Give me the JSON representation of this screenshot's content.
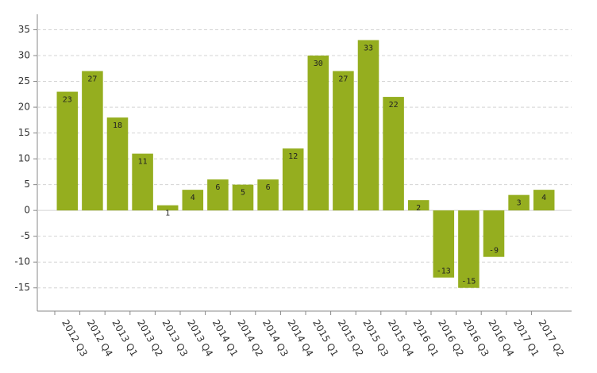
{
  "chart_data": {
    "type": "bar",
    "categories": [
      "2012 Q3",
      "2012 Q4",
      "2013 Q1",
      "2013 Q2",
      "2013 Q3",
      "2013 Q4",
      "2014 Q1",
      "2014 Q2",
      "2014 Q3",
      "2014 Q4",
      "2015 Q1",
      "2015 Q2",
      "2015 Q3",
      "2015 Q4",
      "2016 Q1",
      "2016 Q2",
      "2016 Q3",
      "2016 Q4",
      "2017 Q1",
      "2017 Q2"
    ],
    "values": [
      23,
      27,
      18,
      11,
      1,
      4,
      6,
      5,
      6,
      12,
      30,
      27,
      33,
      22,
      2,
      -13,
      -15,
      -9,
      3,
      4
    ],
    "color": "#95ae1f",
    "ylim": [
      -19.5,
      38
    ],
    "yticks": [
      -15,
      -10,
      -5,
      0,
      5,
      10,
      15,
      20,
      25,
      30,
      35
    ],
    "grid": true
  }
}
